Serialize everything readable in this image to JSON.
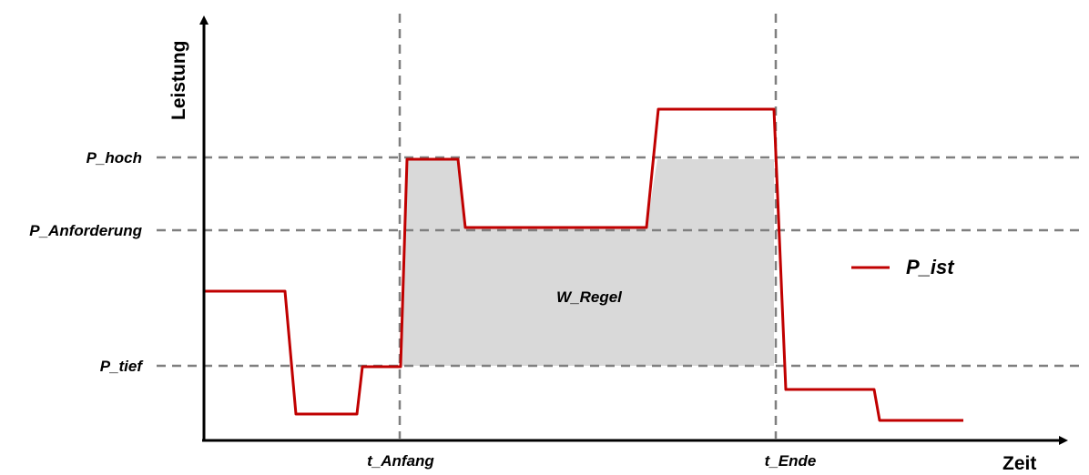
{
  "axes": {
    "y_label": "Leistung",
    "x_label": "Zeit"
  },
  "levels": {
    "p_hoch": "P_hoch",
    "p_anforderung": "P_Anforderung",
    "p_tief": "P_tief"
  },
  "times": {
    "t_anfang": "t_Anfang",
    "t_ende": "t_Ende"
  },
  "area_label": "W_Regel",
  "legend": {
    "series_label": "P_ist"
  },
  "colors": {
    "series": "#c00000",
    "area": "#d9d9d9",
    "guides": "#7f7f7f",
    "axes": "#000000"
  }
}
